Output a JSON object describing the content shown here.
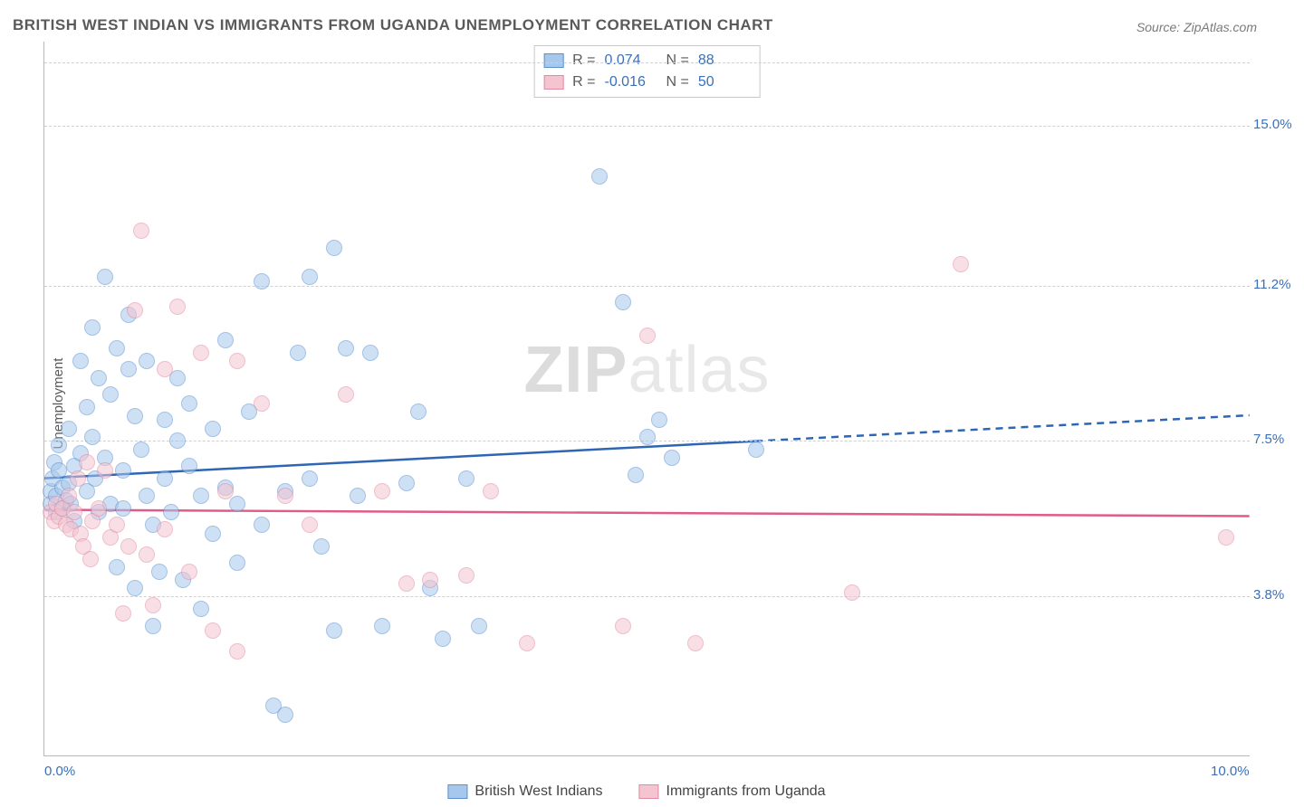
{
  "title": "BRITISH WEST INDIAN VS IMMIGRANTS FROM UGANDA UNEMPLOYMENT CORRELATION CHART",
  "source": "Source: ZipAtlas.com",
  "ylabel": "Unemployment",
  "watermark_a": "ZIP",
  "watermark_b": "atlas",
  "chart": {
    "type": "scatter",
    "background_color": "#ffffff",
    "grid_color": "#d0d0d0",
    "axis_color": "#b8b8b8",
    "tick_color": "#3b6fb6",
    "label_color": "#5a5a5a",
    "title_fontsize": 17,
    "tick_fontsize": 15,
    "xlim": [
      0,
      10
    ],
    "ylim": [
      0,
      17
    ],
    "xticks": [
      {
        "v": 0.0,
        "label": "0.0%"
      },
      {
        "v": 10.0,
        "label": "10.0%"
      }
    ],
    "yticks": [
      {
        "v": 3.8,
        "label": "3.8%"
      },
      {
        "v": 7.5,
        "label": "7.5%"
      },
      {
        "v": 11.2,
        "label": "11.2%"
      },
      {
        "v": 15.0,
        "label": "15.0%"
      }
    ],
    "point_radius": 9,
    "point_opacity": 0.55,
    "series": [
      {
        "id": "bwi",
        "name": "British West Indians",
        "color_fill": "#a6c8ec",
        "color_stroke": "#5b8fd0",
        "r_label": "R =",
        "r_value": "0.074",
        "n_label": "N =",
        "n_value": "88",
        "trend": {
          "x1": 0,
          "y1": 6.6,
          "x2": 10,
          "y2": 8.1,
          "solid_until_x": 5.9,
          "stroke": "#2f66b3",
          "width": 2.5
        },
        "points": [
          [
            0.05,
            6.3
          ],
          [
            0.05,
            6.0
          ],
          [
            0.07,
            6.6
          ],
          [
            0.08,
            7.0
          ],
          [
            0.1,
            6.2
          ],
          [
            0.1,
            5.8
          ],
          [
            0.12,
            6.8
          ],
          [
            0.12,
            7.4
          ],
          [
            0.15,
            6.4
          ],
          [
            0.15,
            5.9
          ],
          [
            0.18,
            6.1
          ],
          [
            0.2,
            7.8
          ],
          [
            0.2,
            6.5
          ],
          [
            0.22,
            6.0
          ],
          [
            0.25,
            6.9
          ],
          [
            0.25,
            5.6
          ],
          [
            0.3,
            7.2
          ],
          [
            0.3,
            9.4
          ],
          [
            0.35,
            6.3
          ],
          [
            0.35,
            8.3
          ],
          [
            0.4,
            7.6
          ],
          [
            0.4,
            10.2
          ],
          [
            0.42,
            6.6
          ],
          [
            0.45,
            5.8
          ],
          [
            0.45,
            9.0
          ],
          [
            0.5,
            7.1
          ],
          [
            0.5,
            11.4
          ],
          [
            0.55,
            6.0
          ],
          [
            0.55,
            8.6
          ],
          [
            0.6,
            9.7
          ],
          [
            0.6,
            4.5
          ],
          [
            0.65,
            5.9
          ],
          [
            0.65,
            6.8
          ],
          [
            0.7,
            10.5
          ],
          [
            0.7,
            9.2
          ],
          [
            0.75,
            4.0
          ],
          [
            0.75,
            8.1
          ],
          [
            0.8,
            7.3
          ],
          [
            0.85,
            6.2
          ],
          [
            0.85,
            9.4
          ],
          [
            0.9,
            5.5
          ],
          [
            0.9,
            3.1
          ],
          [
            0.95,
            4.4
          ],
          [
            1.0,
            8.0
          ],
          [
            1.0,
            6.6
          ],
          [
            1.05,
            5.8
          ],
          [
            1.1,
            7.5
          ],
          [
            1.1,
            9.0
          ],
          [
            1.15,
            4.2
          ],
          [
            1.2,
            6.9
          ],
          [
            1.2,
            8.4
          ],
          [
            1.3,
            3.5
          ],
          [
            1.3,
            6.2
          ],
          [
            1.4,
            5.3
          ],
          [
            1.4,
            7.8
          ],
          [
            1.5,
            6.4
          ],
          [
            1.5,
            9.9
          ],
          [
            1.6,
            6.0
          ],
          [
            1.6,
            4.6
          ],
          [
            1.7,
            8.2
          ],
          [
            1.8,
            5.5
          ],
          [
            1.8,
            11.3
          ],
          [
            1.9,
            1.2
          ],
          [
            2.0,
            6.3
          ],
          [
            2.0,
            1.0
          ],
          [
            2.1,
            9.6
          ],
          [
            2.2,
            6.6
          ],
          [
            2.2,
            11.4
          ],
          [
            2.3,
            5.0
          ],
          [
            2.4,
            3.0
          ],
          [
            2.4,
            12.1
          ],
          [
            2.5,
            9.7
          ],
          [
            2.6,
            6.2
          ],
          [
            2.7,
            9.6
          ],
          [
            2.8,
            3.1
          ],
          [
            3.0,
            6.5
          ],
          [
            3.1,
            8.2
          ],
          [
            3.2,
            4.0
          ],
          [
            3.3,
            2.8
          ],
          [
            3.5,
            6.6
          ],
          [
            3.6,
            3.1
          ],
          [
            4.6,
            13.8
          ],
          [
            4.8,
            10.8
          ],
          [
            4.9,
            6.7
          ],
          [
            5.0,
            7.6
          ],
          [
            5.1,
            8.0
          ],
          [
            5.2,
            7.1
          ],
          [
            5.9,
            7.3
          ]
        ]
      },
      {
        "id": "ugi",
        "name": "Immigrants from Uganda",
        "color_fill": "#f4c4d0",
        "color_stroke": "#e28aa2",
        "r_label": "R =",
        "r_value": "-0.016",
        "n_label": "N =",
        "n_value": "50",
        "trend": {
          "x1": 0,
          "y1": 5.85,
          "x2": 10,
          "y2": 5.7,
          "solid_until_x": 10,
          "stroke": "#e05a8a",
          "width": 2.5
        },
        "points": [
          [
            0.05,
            5.8
          ],
          [
            0.08,
            5.6
          ],
          [
            0.1,
            6.0
          ],
          [
            0.12,
            5.7
          ],
          [
            0.15,
            5.9
          ],
          [
            0.18,
            5.5
          ],
          [
            0.2,
            6.2
          ],
          [
            0.22,
            5.4
          ],
          [
            0.25,
            5.8
          ],
          [
            0.28,
            6.6
          ],
          [
            0.3,
            5.3
          ],
          [
            0.32,
            5.0
          ],
          [
            0.35,
            7.0
          ],
          [
            0.38,
            4.7
          ],
          [
            0.4,
            5.6
          ],
          [
            0.45,
            5.9
          ],
          [
            0.5,
            6.8
          ],
          [
            0.55,
            5.2
          ],
          [
            0.6,
            5.5
          ],
          [
            0.65,
            3.4
          ],
          [
            0.7,
            5.0
          ],
          [
            0.75,
            10.6
          ],
          [
            0.8,
            12.5
          ],
          [
            0.85,
            4.8
          ],
          [
            0.9,
            3.6
          ],
          [
            1.0,
            5.4
          ],
          [
            1.0,
            9.2
          ],
          [
            1.1,
            10.7
          ],
          [
            1.2,
            4.4
          ],
          [
            1.3,
            9.6
          ],
          [
            1.4,
            3.0
          ],
          [
            1.5,
            6.3
          ],
          [
            1.6,
            9.4
          ],
          [
            1.6,
            2.5
          ],
          [
            1.8,
            8.4
          ],
          [
            2.0,
            6.2
          ],
          [
            2.2,
            5.5
          ],
          [
            2.5,
            8.6
          ],
          [
            2.8,
            6.3
          ],
          [
            3.0,
            4.1
          ],
          [
            3.2,
            4.2
          ],
          [
            3.5,
            4.3
          ],
          [
            3.7,
            6.3
          ],
          [
            4.0,
            2.7
          ],
          [
            4.8,
            3.1
          ],
          [
            5.0,
            10.0
          ],
          [
            5.4,
            2.7
          ],
          [
            6.7,
            3.9
          ],
          [
            7.6,
            11.7
          ],
          [
            9.8,
            5.2
          ]
        ]
      }
    ]
  },
  "legend_top": {
    "show": true
  },
  "legend_bottom": {
    "show": true
  }
}
